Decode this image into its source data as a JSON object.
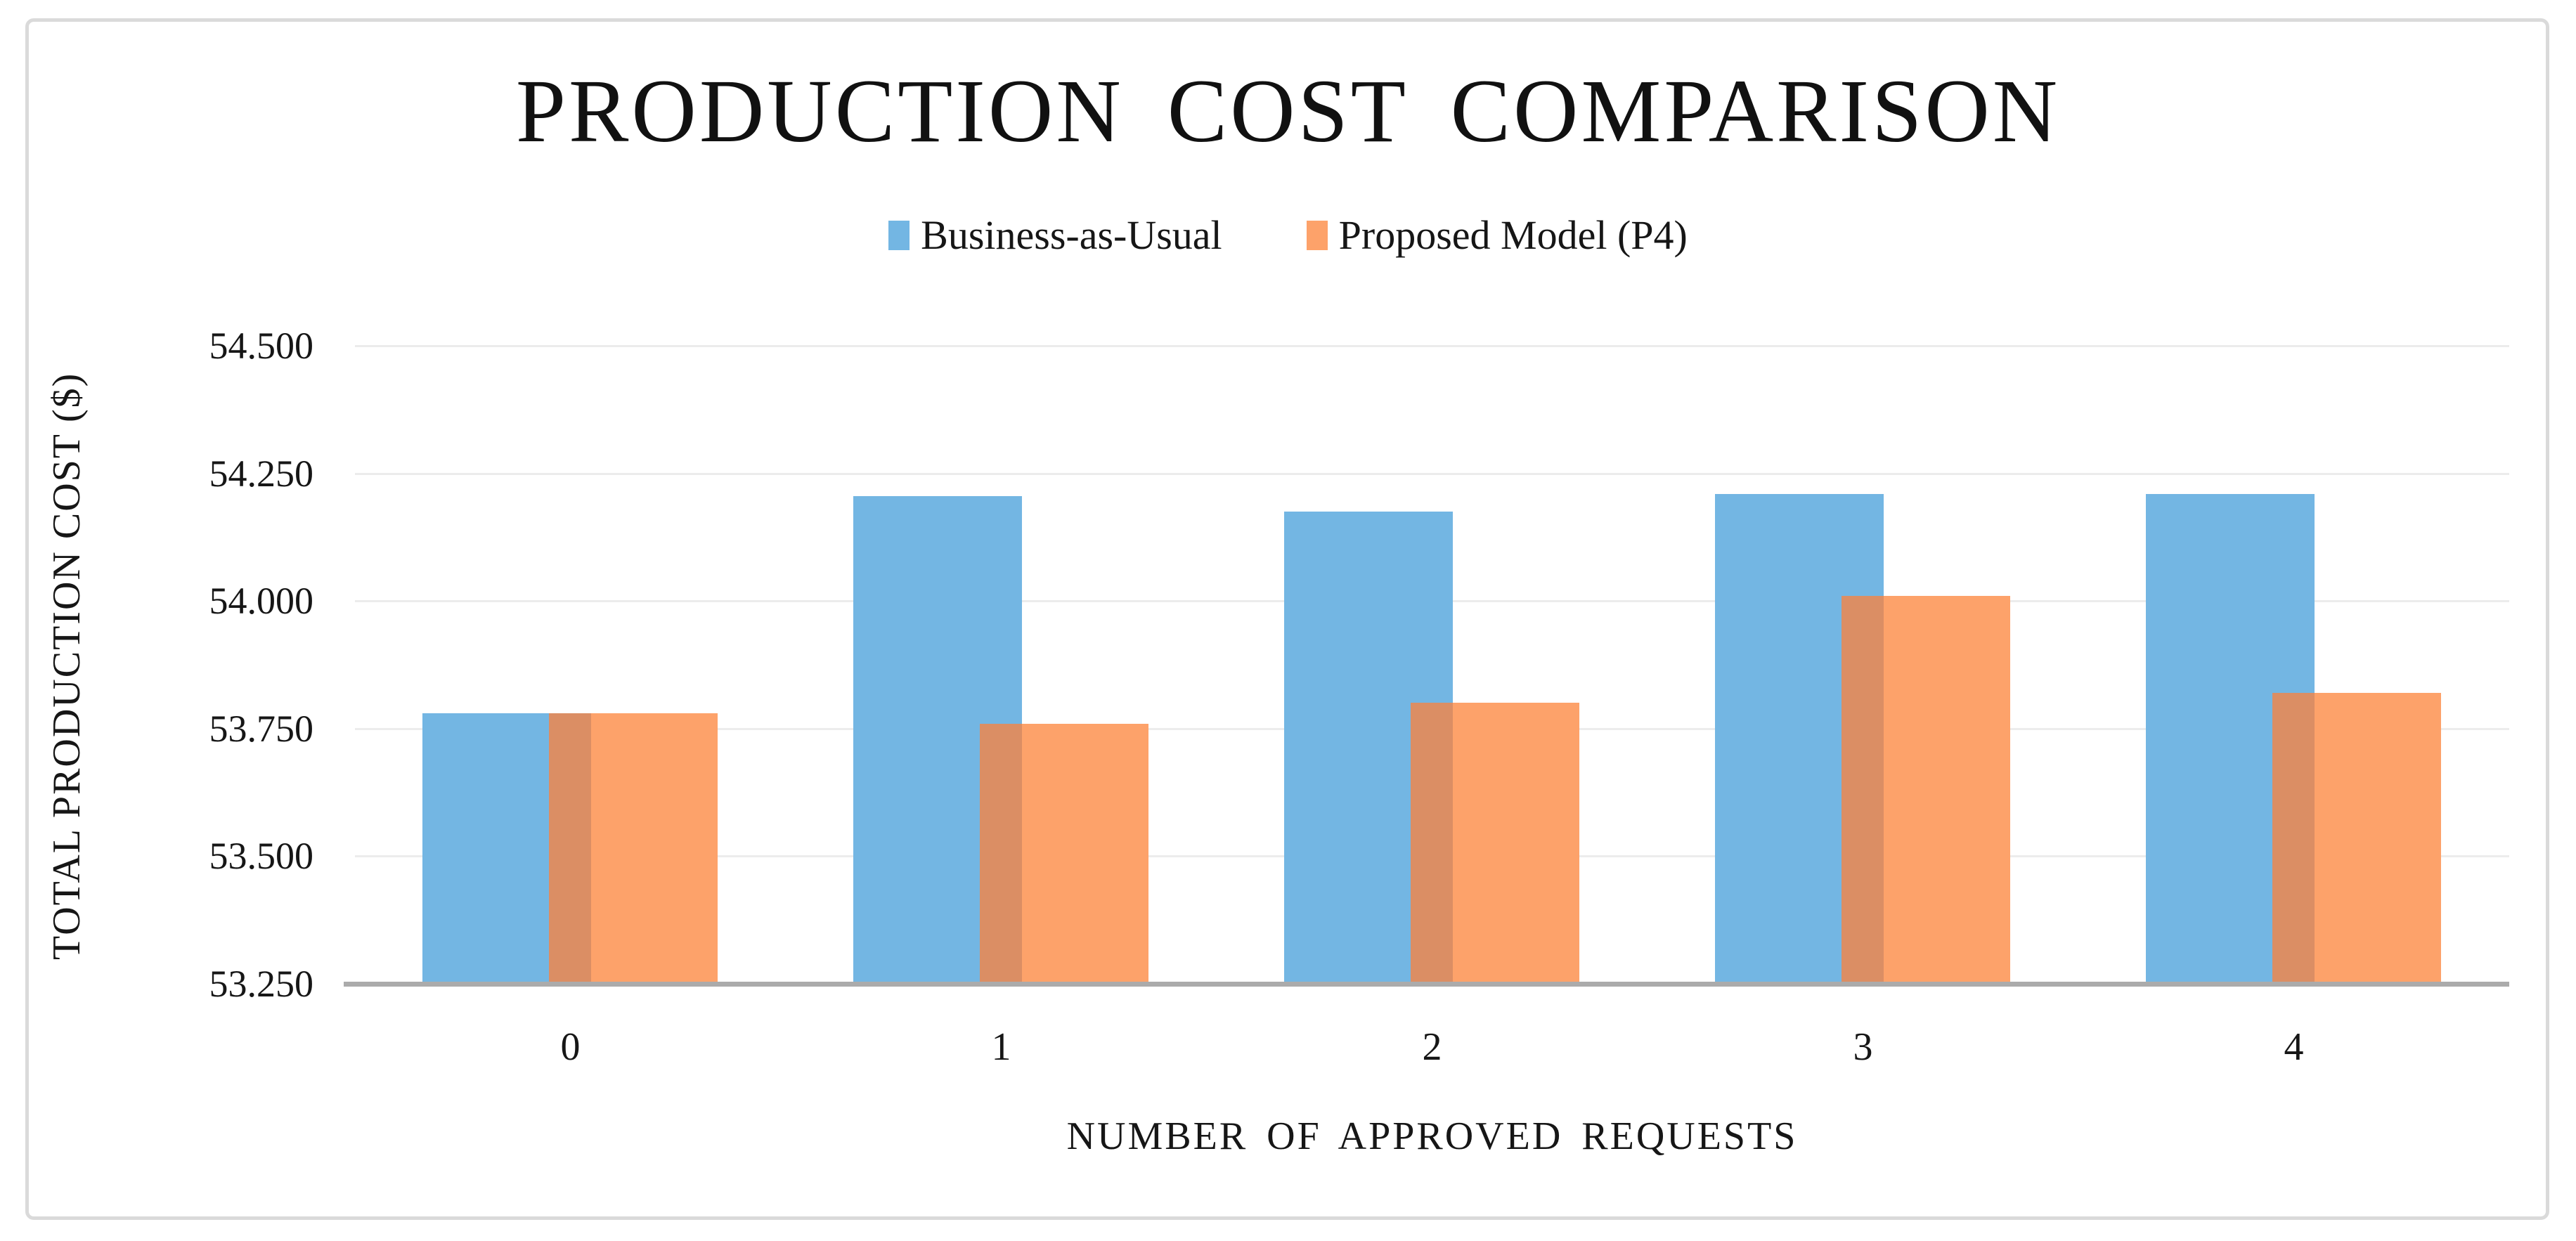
{
  "chart_data": {
    "type": "bar",
    "title": "PRODUCTION COST COMPARISON",
    "xlabel": "NUMBER OF APPROVED REQUESTS",
    "ylabel": "TOTAL PRODUCTION COST ($)",
    "categories": [
      "0",
      "1",
      "2",
      "3",
      "4"
    ],
    "series": [
      {
        "name": "Business-as-Usual",
        "color": "#73b6e3",
        "values": [
          53.78,
          54.205,
          54.175,
          54.21,
          54.21
        ]
      },
      {
        "name": "Proposed Model (P4)",
        "color": "#fda26a",
        "values": [
          53.78,
          53.76,
          53.8,
          54.01,
          53.82
        ]
      }
    ],
    "overlap_color": "#db8e64",
    "ylim": [
      53.25,
      54.5
    ],
    "ytick_step": 0.25,
    "ytick_labels_top_to_bottom": [
      "54.500",
      "54.250",
      "54.000",
      "53.750",
      "53.500",
      "53.250"
    ],
    "grid": true,
    "gridline_color": "#ececec",
    "axis_line_color": "#ababab",
    "legend_position": "top-center"
  }
}
